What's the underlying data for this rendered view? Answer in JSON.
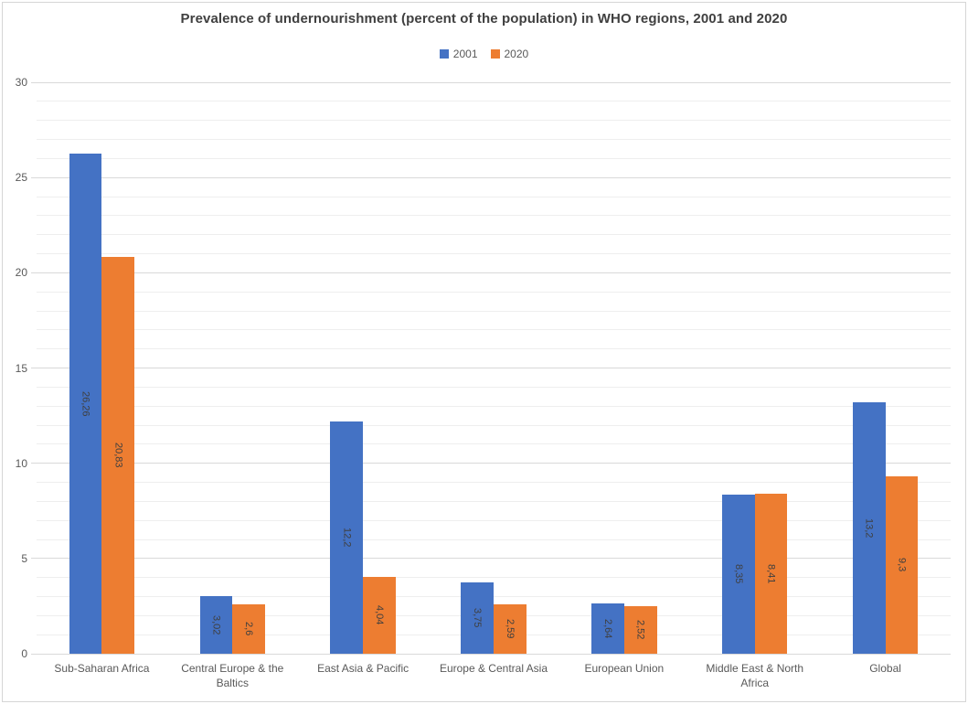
{
  "title": "Prevalence of undernourishment (percent of the population) in WHO regions, 2001 and 2020",
  "chart_data": {
    "type": "bar",
    "title": "Prevalence of undernourishment (percent of the population) in WHO regions, 2001 and 2020",
    "categories": [
      "Sub-Saharan Africa",
      "Central Europe & the Baltics",
      "East Asia & Pacific",
      "Europe & Central Asia",
      "European Union",
      "Middle East & North Africa",
      "Global"
    ],
    "series": [
      {
        "name": "2001",
        "color": "#4472C4",
        "values": [
          26.26,
          3.02,
          12.2,
          3.75,
          2.64,
          8.35,
          13.2
        ],
        "data_labels": [
          "26,26",
          "3,02",
          "12,2",
          "3,75",
          "2,64",
          "8,35",
          "13,2"
        ]
      },
      {
        "name": "2020",
        "color": "#ED7D31",
        "values": [
          20.83,
          2.6,
          4.04,
          2.59,
          2.52,
          8.41,
          9.3
        ],
        "data_labels": [
          "20,83",
          "2,6",
          "4,04",
          "2,59",
          "2,52",
          "8,41",
          "9,3"
        ]
      }
    ],
    "xlabel": "",
    "ylabel": "",
    "ylim": [
      0,
      30
    ],
    "y_major_ticks": [
      0,
      5,
      10,
      15,
      20,
      25,
      30
    ],
    "y_minor_step": 1,
    "grid": "on",
    "legend_position": "top",
    "data_label_style": "rotated-vertical-inside-center",
    "decimal_separator": ","
  },
  "colors": {
    "series_2001": "#4472C4",
    "series_2020": "#ED7D31",
    "major_gridline": "#d9d9d9",
    "minor_gridline": "#eeeeee",
    "axis_text": "#595959",
    "title_text": "#404040",
    "data_label_text": "#3f3f3f",
    "chart_border": "#d6d6d6"
  }
}
